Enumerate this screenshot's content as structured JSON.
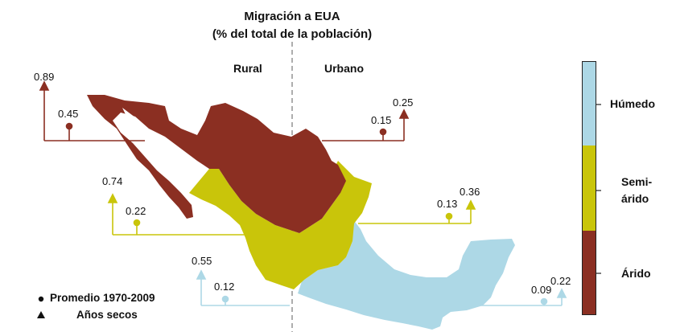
{
  "title": {
    "line1": "Migración a EUA",
    "line2": "(% del total de la población)"
  },
  "columns": {
    "rural": "Rural",
    "urbano": "Urbano"
  },
  "colors": {
    "arido": "#8B2F22",
    "semiarido": "#C9C50A",
    "humedo": "#ADD8E6",
    "divider": "#9a9a9a"
  },
  "zones": [
    {
      "key": "arido",
      "rural": {
        "promedio": "0.45",
        "anos_secos": "0.89"
      },
      "urbano": {
        "promedio": "0.15",
        "anos_secos": "0.25"
      }
    },
    {
      "key": "semiarido",
      "rural": {
        "promedio": "0.22",
        "anos_secos": "0.74"
      },
      "urbano": {
        "promedio": "0.13",
        "anos_secos": "0.36"
      }
    },
    {
      "key": "humedo",
      "rural": {
        "promedio": "0.12",
        "anos_secos": "0.55"
      },
      "urbano": {
        "promedio": "0.09",
        "anos_secos": "0.22"
      }
    }
  ],
  "legend": {
    "promedio": "Promedio 1970-2009",
    "anos_secos": "Años secos"
  },
  "colorbar": {
    "humedo": "Húmedo",
    "semiarido_line1": "Semi-",
    "semiarido_line2": "árido",
    "arido": "Árido"
  }
}
